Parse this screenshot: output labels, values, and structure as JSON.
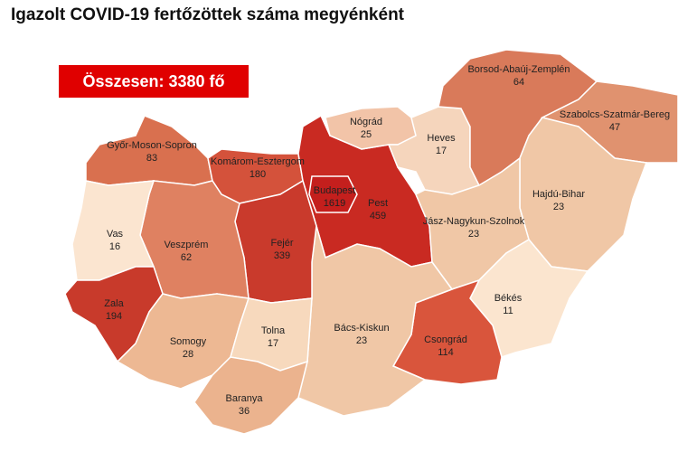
{
  "title": "Igazolt COVID-19 fertőzöttek száma megyénként",
  "total_label": "Összesen: 3380 fő",
  "regions": [
    {
      "name": "Győr-Moson-Sopron",
      "value": 83,
      "color": "#d9704f"
    },
    {
      "name": "Komárom-Esztergom",
      "value": 180,
      "color": "#d4523b"
    },
    {
      "name": "Pest",
      "value": 459,
      "color": "#c92a22"
    },
    {
      "name": "Budapest",
      "value": 1619,
      "color": "#c41f1d"
    },
    {
      "name": "Nógrád",
      "value": 25,
      "color": "#f2c4a8"
    },
    {
      "name": "Heves",
      "value": 17,
      "color": "#f5d5bc"
    },
    {
      "name": "Borsod-Abaúj-Zemplén",
      "value": 64,
      "color": "#d97a5a"
    },
    {
      "name": "Szabolcs-Szatmár-Bereg",
      "value": 47,
      "color": "#e0926f"
    },
    {
      "name": "Hajdú-Bihar",
      "value": 23,
      "color": "#f0c7a6"
    },
    {
      "name": "Jász-Nagykun-Szolnok",
      "value": 23,
      "color": "#f0c7a6"
    },
    {
      "name": "Békés",
      "value": 11,
      "color": "#fbe5cf"
    },
    {
      "name": "Csongrád",
      "value": 114,
      "color": "#d9553c"
    },
    {
      "name": "Bács-Kiskun",
      "value": 23,
      "color": "#f0c7a6"
    },
    {
      "name": "Fejér",
      "value": 339,
      "color": "#c93a2c"
    },
    {
      "name": "Veszprém",
      "value": 62,
      "color": "#df8161"
    },
    {
      "name": "Vas",
      "value": 16,
      "color": "#fbe5d0"
    },
    {
      "name": "Zala",
      "value": 194,
      "color": "#c83a2b"
    },
    {
      "name": "Somogy",
      "value": 28,
      "color": "#edb893"
    },
    {
      "name": "Tolna",
      "value": 17,
      "color": "#f7d9bd"
    },
    {
      "name": "Baranya",
      "value": 36,
      "color": "#ebb38e"
    }
  ]
}
